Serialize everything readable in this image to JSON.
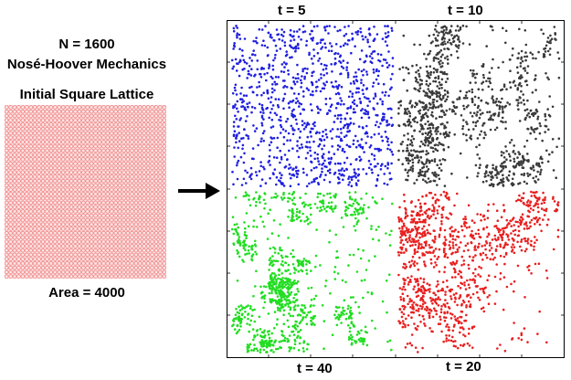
{
  "left": {
    "n_label": "N = 1600",
    "method_label": "Nosé-Hoover Mechanics",
    "lattice_title": "Initial Square Lattice",
    "area_label": "Area = 4000",
    "lattice_color": "#f08080"
  },
  "panels": {
    "top_left": {
      "label": "t = 5",
      "color": "#2020e0"
    },
    "top_right": {
      "label": "t = 10",
      "color": "#3a3a3a"
    },
    "bottom_left": {
      "label": "t = 40",
      "color": "#22dd22"
    },
    "bottom_right": {
      "label": "t = 20",
      "color": "#e82020"
    }
  }
}
